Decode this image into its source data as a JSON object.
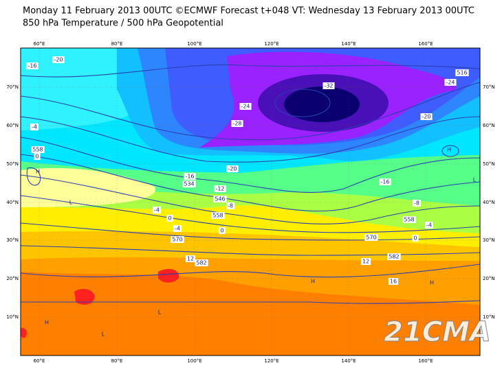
{
  "header": {
    "title": "Monday 11 February 2013 00UTC ©ECMWF Forecast t+048 VT: Wednesday 13 February 2013 00UTC",
    "subtitle": "850 hPa Temperature / 500 hPa Geopotential"
  },
  "map": {
    "longitude_labels": [
      "60°E",
      "80°E",
      "100°E",
      "120°E",
      "140°E",
      "160°E"
    ],
    "latitude_labels": [
      "70°N",
      "60°N",
      "50°N",
      "40°N",
      "30°N",
      "20°N",
      "10°N"
    ],
    "contour_labels": [
      "-20",
      "-16",
      "-32",
      "-24",
      "-24",
      "-28",
      "-20",
      "516",
      "-4",
      "558",
      "0",
      "-20",
      "-16",
      "534",
      "-12",
      "546",
      "-8",
      "-4",
      "558",
      "0",
      "-4",
      "0",
      "570",
      "12",
      "582",
      "-16",
      "-8",
      "558",
      "-4",
      "0",
      "570",
      "12",
      "582",
      "16"
    ],
    "pressure_centers": [
      "H",
      "L",
      "H",
      "L",
      "H",
      "H",
      "L",
      "H",
      "L"
    ],
    "watermark": "21CMA"
  }
}
